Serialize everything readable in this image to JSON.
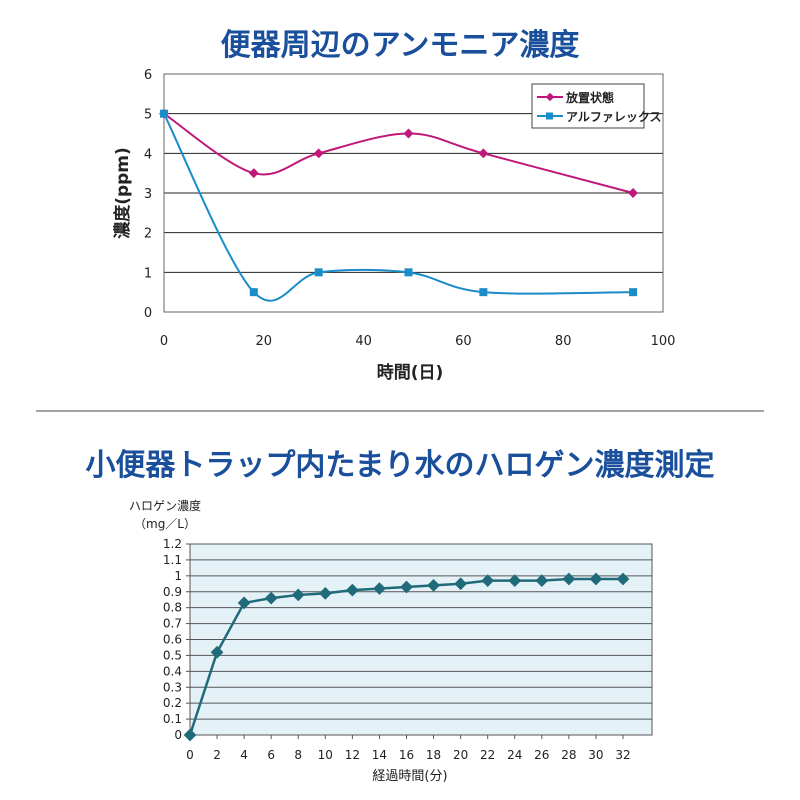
{
  "chart_data": [
    {
      "type": "line",
      "title": "便器周辺のアンモニア濃度",
      "xlabel": "時間(日)",
      "ylabel": "濃度(ppm)",
      "xlim": [
        0,
        100
      ],
      "ylim": [
        0,
        6
      ],
      "xticks": [
        "0",
        "20",
        "40",
        "60",
        "80",
        "100"
      ],
      "yticks": [
        "0",
        "1",
        "2",
        "3",
        "4",
        "5",
        "6"
      ],
      "legend_position": "top-right",
      "grid": "horizontal",
      "series": [
        {
          "name": "放置状態",
          "color": "#c0187a",
          "marker": "diamond",
          "x": [
            0,
            18,
            31,
            49,
            64,
            94
          ],
          "y": [
            5,
            3.5,
            4,
            4.5,
            4,
            3
          ]
        },
        {
          "name": "アルファレックス",
          "color": "#1a8cc8",
          "marker": "square",
          "x": [
            0,
            18,
            31,
            49,
            64,
            94
          ],
          "y": [
            5,
            0.5,
            1,
            1,
            0.5,
            0.5
          ]
        }
      ]
    },
    {
      "type": "line",
      "title": "小便器トラップ内たまり水のハロゲン濃度測定",
      "xlabel": "経過時間(分)",
      "ylabel_line1": "ハロゲン濃度",
      "ylabel_line2": "（mg／L）",
      "xlim": [
        0,
        34
      ],
      "ylim": [
        0,
        1.2
      ],
      "xticks": [
        "0",
        "2",
        "4",
        "6",
        "8",
        "10",
        "12",
        "14",
        "16",
        "18",
        "20",
        "22",
        "24",
        "26",
        "28",
        "30",
        "32"
      ],
      "yticks": [
        "0",
        "0.1",
        "0.2",
        "0.3",
        "0.4",
        "0.5",
        "0.6",
        "0.7",
        "0.8",
        "0.9",
        "1",
        "1.1",
        "1.2"
      ],
      "grid": "horizontal",
      "series": [
        {
          "name": "ハロゲン濃度",
          "color": "#1f6b7a",
          "marker": "diamond",
          "x": [
            0,
            2,
            4,
            6,
            8,
            10,
            12,
            14,
            16,
            18,
            20,
            22,
            24,
            26,
            28,
            30,
            32
          ],
          "y": [
            0,
            0.52,
            0.83,
            0.86,
            0.88,
            0.89,
            0.91,
            0.92,
            0.93,
            0.94,
            0.95,
            0.97,
            0.97,
            0.97,
            0.98,
            0.98,
            0.98
          ]
        }
      ]
    }
  ]
}
